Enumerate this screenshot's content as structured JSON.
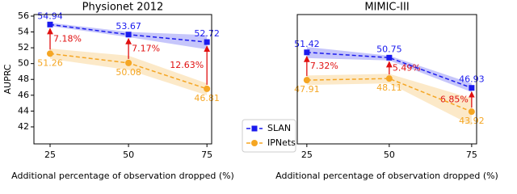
{
  "chart_data": [
    {
      "type": "line",
      "title": "Physionet 2012",
      "xlabel": "Additional percentage of observation dropped (%)",
      "ylabel": "AUPRC",
      "x": [
        25,
        50,
        75
      ],
      "xlim": [
        19.85,
        76.5
      ],
      "xticks": [
        25,
        50,
        75
      ],
      "ylim": [
        39.85,
        56.2
      ],
      "yticks": [
        42,
        44,
        46,
        48,
        50,
        52,
        54,
        56
      ],
      "legend": "lower right",
      "series": [
        {
          "name": "SLAN",
          "color": "#1a1aee",
          "marker": "square",
          "values": [
            54.94,
            53.67,
            52.72
          ],
          "band_upper": [
            55.15,
            54.0,
            53.6
          ],
          "band_lower": [
            54.75,
            53.35,
            51.8
          ]
        },
        {
          "name": "IPNets",
          "color": "#f5a623",
          "marker": "circle",
          "values": [
            51.26,
            50.08,
            46.81
          ],
          "band_upper": [
            51.9,
            51.0,
            47.5
          ],
          "band_lower": [
            50.6,
            49.2,
            46.0
          ]
        }
      ],
      "annotations": [
        {
          "x": 25,
          "text": "7.18%"
        },
        {
          "x": 50,
          "text": "7.17%"
        },
        {
          "x": 75,
          "text": "12.63%"
        }
      ]
    },
    {
      "type": "line",
      "title": "MIMIC-III",
      "xlabel": "Additional percentage of observation dropped (%)",
      "x": [
        25,
        50,
        75
      ],
      "xlim": [
        22.1,
        76.5
      ],
      "xticks": [
        25,
        50,
        75
      ],
      "ylim": [
        39.85,
        56.2
      ],
      "series": [
        {
          "name": "SLAN",
          "color": "#1a1aee",
          "marker": "square",
          "values": [
            51.42,
            50.75,
            46.93
          ],
          "band_upper": [
            52.1,
            51.0,
            47.5
          ],
          "band_lower": [
            50.7,
            50.4,
            46.4
          ]
        },
        {
          "name": "IPNets",
          "color": "#f5a623",
          "marker": "circle",
          "values": [
            47.91,
            48.11,
            43.92
          ],
          "band_upper": [
            48.5,
            48.7,
            45.6
          ],
          "band_lower": [
            47.3,
            47.5,
            42.2
          ]
        }
      ],
      "annotations": [
        {
          "x": 25,
          "text": "7.32%"
        },
        {
          "x": 50,
          "text": "5.49%"
        },
        {
          "x": 75,
          "text": "6.85%"
        }
      ]
    }
  ]
}
